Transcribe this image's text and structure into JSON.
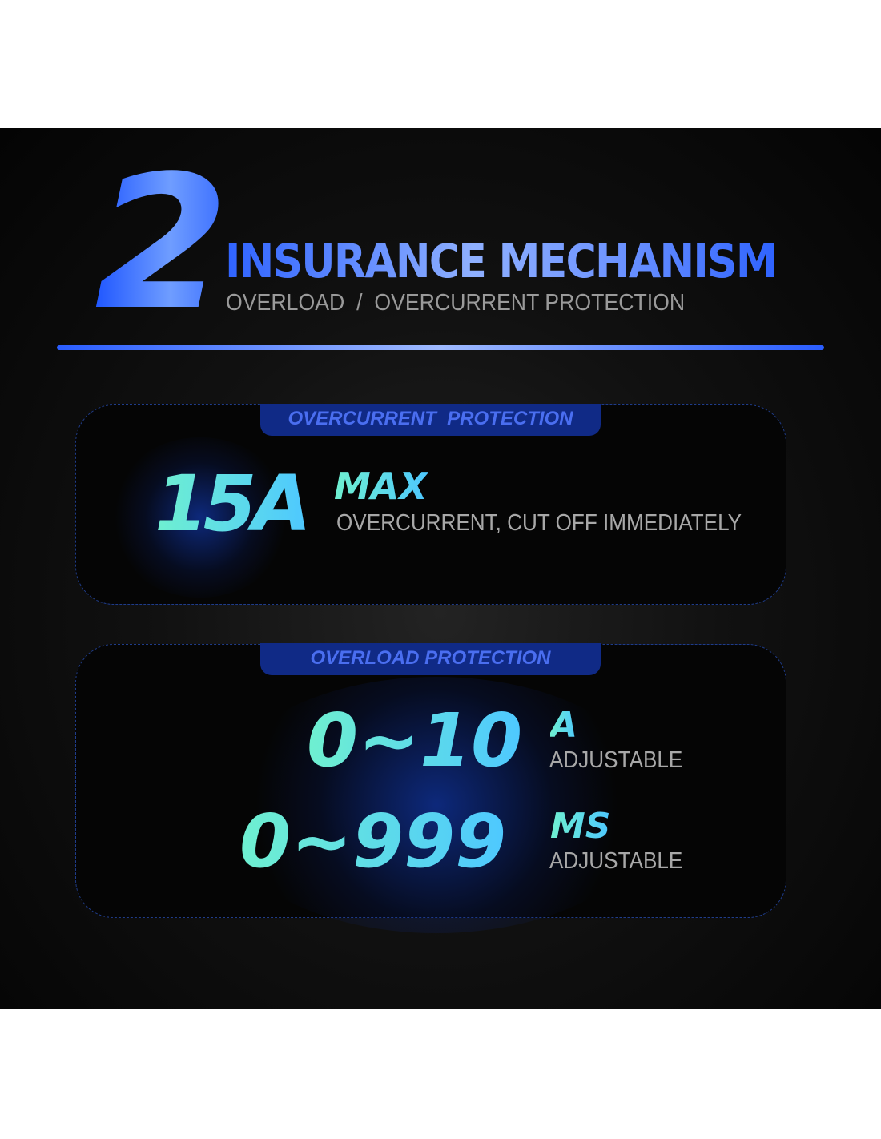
{
  "header": {
    "number": "2",
    "title": "INSURANCE MECHANISM",
    "subtitle": "OVERLOAD  /  OVERCURRENT PROTECTION"
  },
  "overcurrent": {
    "tab": "OVERCURRENT  PROTECTION",
    "value": "15A",
    "unit": "MAX",
    "description": "OVERCURRENT, CUT OFF IMMEDIATELY"
  },
  "overload": {
    "tab": "OVERLOAD PROTECTION",
    "current_range": "0~10",
    "current_unit": "A",
    "current_note": "ADJUSTABLE",
    "time_range": "0~999",
    "time_unit": "MS",
    "time_note": "ADJUSTABLE"
  },
  "colors": {
    "accent_blue": "#2f63ff",
    "tab_bg": "#102a86",
    "value_gradient_start": "#6ff0d0",
    "value_gradient_end": "#4ec8ff"
  }
}
